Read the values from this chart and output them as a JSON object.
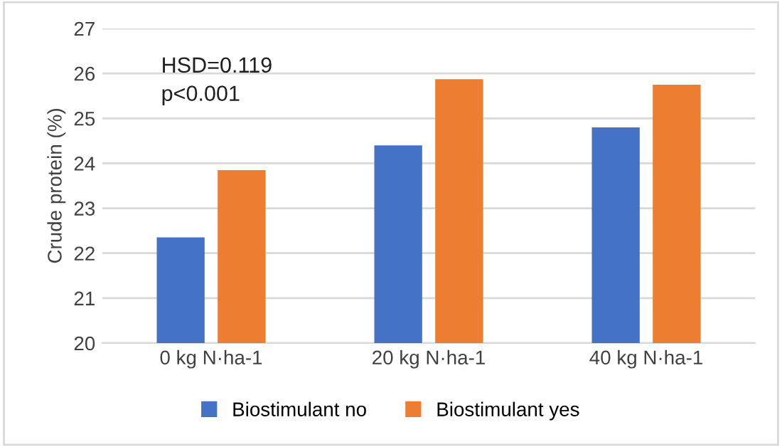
{
  "chart_data": {
    "type": "bar",
    "ylabel": "Crude protein (%)",
    "categories": [
      "0 kg N·ha-1",
      "20 kg N·ha-1",
      "40 kg N·ha-1"
    ],
    "series": [
      {
        "name": "Biostimulant no",
        "color": "#4472c4",
        "values": [
          22.35,
          24.4,
          24.8
        ]
      },
      {
        "name": "Biostimulant yes",
        "color": "#ed7d31",
        "values": [
          23.85,
          25.87,
          25.75
        ]
      }
    ],
    "ylim": [
      20,
      27
    ],
    "yticks": [
      20,
      21,
      22,
      23,
      24,
      25,
      26,
      27
    ],
    "grid": "y",
    "legend": "bottom",
    "annotations": [
      "HSD=0.119",
      "p<0.001"
    ]
  }
}
